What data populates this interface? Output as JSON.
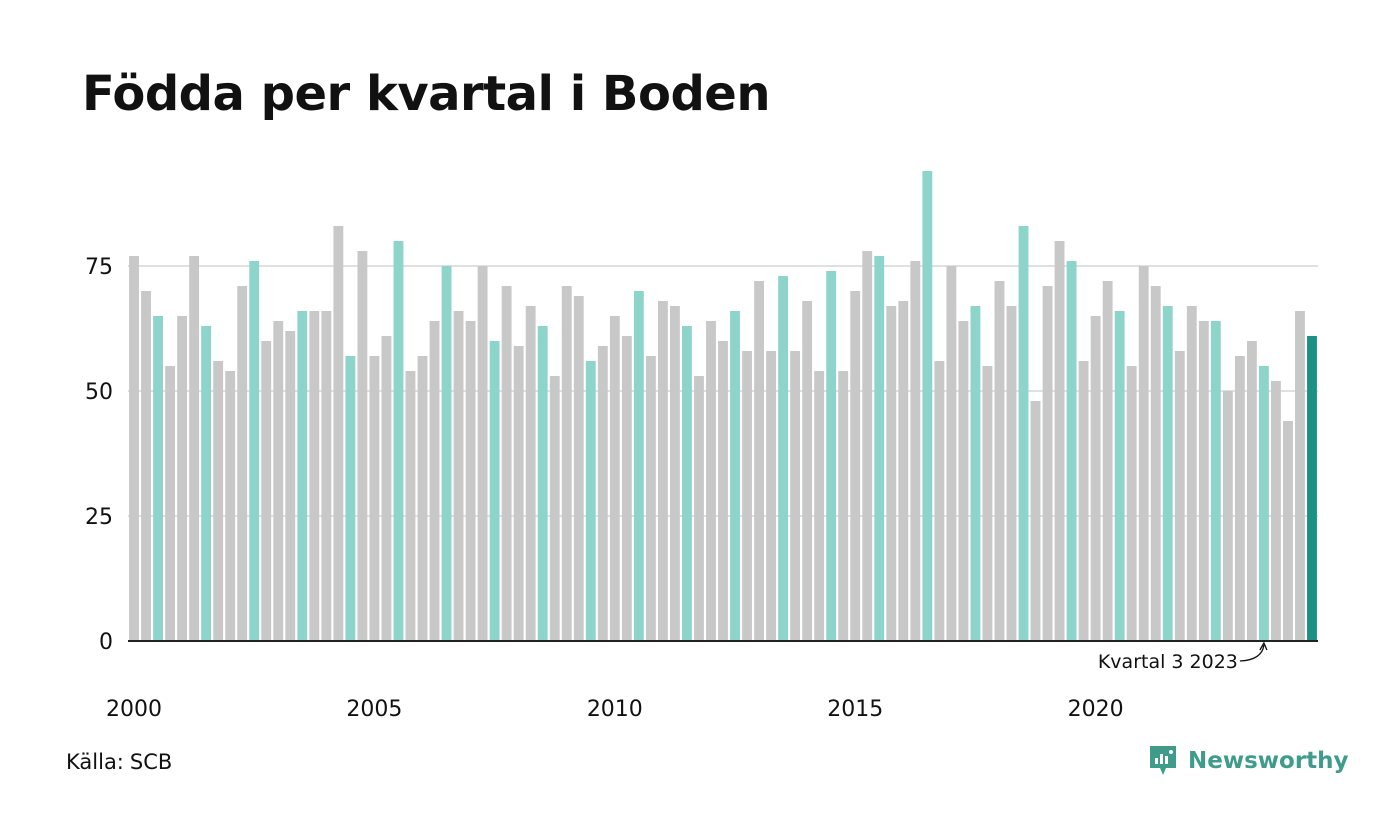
{
  "title": "Födda per kvartal i Boden",
  "source": {
    "label": "Källa:",
    "value": "SCB"
  },
  "brand": {
    "name": "Newsworthy",
    "icon": "newsworthy-logo-icon"
  },
  "colors": {
    "default": "#c8c8c8",
    "q3": "#8dd5ca",
    "latest": "#1a9182",
    "grid": "#e0e0e0",
    "axis": "#222222"
  },
  "chart_data": {
    "type": "bar",
    "ylim": [
      0,
      95
    ],
    "yticks": [
      0,
      25,
      50,
      75
    ],
    "xtick_labels": [
      "2000",
      "2005",
      "2010",
      "2015",
      "2020"
    ],
    "grid": true,
    "highlight_rule": "Kvartal 3 of each year highlighted",
    "annotation": "Kvartal 3 2023",
    "categories": [
      "2000 K1",
      "2000 K2",
      "2000 K3",
      "2000 K4",
      "2001 K1",
      "2001 K2",
      "2001 K3",
      "2001 K4",
      "2002 K1",
      "2002 K2",
      "2002 K3",
      "2002 K4",
      "2003 K1",
      "2003 K2",
      "2003 K3",
      "2003 K4",
      "2004 K1",
      "2004 K2",
      "2004 K3",
      "2004 K4",
      "2005 K1",
      "2005 K2",
      "2005 K3",
      "2005 K4",
      "2006 K1",
      "2006 K2",
      "2006 K3",
      "2006 K4",
      "2007 K1",
      "2007 K2",
      "2007 K3",
      "2007 K4",
      "2008 K1",
      "2008 K2",
      "2008 K3",
      "2008 K4",
      "2009 K1",
      "2009 K2",
      "2009 K3",
      "2009 K4",
      "2010 K1",
      "2010 K2",
      "2010 K3",
      "2010 K4",
      "2011 K1",
      "2011 K2",
      "2011 K3",
      "2011 K4",
      "2012 K1",
      "2012 K2",
      "2012 K3",
      "2012 K4",
      "2013 K1",
      "2013 K2",
      "2013 K3",
      "2013 K4",
      "2014 K1",
      "2014 K2",
      "2014 K3",
      "2014 K4",
      "2015 K1",
      "2015 K2",
      "2015 K3",
      "2015 K4",
      "2016 K1",
      "2016 K2",
      "2016 K3",
      "2016 K4",
      "2017 K1",
      "2017 K2",
      "2017 K3",
      "2017 K4",
      "2018 K1",
      "2018 K2",
      "2018 K3",
      "2018 K4",
      "2019 K1",
      "2019 K2",
      "2019 K3",
      "2019 K4",
      "2020 K1",
      "2020 K2",
      "2020 K3",
      "2020 K4",
      "2021 K1",
      "2021 K2",
      "2021 K3",
      "2021 K4",
      "2022 K1",
      "2022 K2",
      "2022 K3",
      "2022 K4",
      "2023 K1",
      "2023 K2",
      "2023 K3",
      "2023 K4",
      "2024 K1",
      "2024 K2",
      "2024 K3"
    ],
    "values": [
      77,
      70,
      65,
      55,
      65,
      77,
      63,
      56,
      54,
      71,
      76,
      60,
      64,
      62,
      66,
      66,
      66,
      83,
      57,
      78,
      57,
      61,
      80,
      54,
      57,
      64,
      75,
      66,
      64,
      75,
      60,
      71,
      59,
      67,
      63,
      53,
      71,
      69,
      56,
      59,
      65,
      61,
      70,
      57,
      68,
      67,
      63,
      53,
      64,
      60,
      66,
      58,
      72,
      58,
      73,
      58,
      68,
      54,
      74,
      54,
      70,
      78,
      77,
      67,
      68,
      76,
      94,
      56,
      75,
      64,
      67,
      55,
      72,
      67,
      83,
      48,
      71,
      80,
      76,
      56,
      65,
      72,
      66,
      55,
      75,
      71,
      67,
      58,
      67,
      64,
      64,
      50,
      57,
      60,
      55,
      52,
      44,
      66,
      61
    ]
  }
}
